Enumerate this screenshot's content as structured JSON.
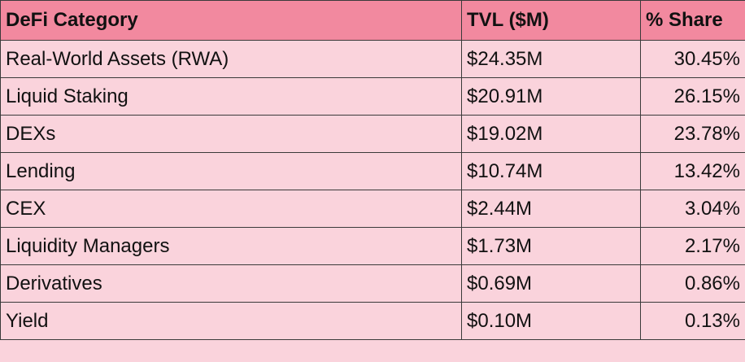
{
  "table": {
    "headers": [
      "DeFi Category",
      "TVL ($M)",
      "% Share"
    ],
    "rows": [
      [
        "Real-World Assets (RWA)",
        "$24.35M",
        "30.45%"
      ],
      [
        "Liquid Staking",
        "$20.91M",
        "26.15%"
      ],
      [
        "DEXs",
        "$19.02M",
        "23.78%"
      ],
      [
        "Lending",
        "$10.74M",
        "13.42%"
      ],
      [
        "CEX",
        "$2.44M",
        "3.04%"
      ],
      [
        "Liquidity Managers",
        "$1.73M",
        "2.17%"
      ],
      [
        "Derivatives",
        "$0.69M",
        "0.86%"
      ],
      [
        "Yield",
        "$0.10M",
        "0.13%"
      ]
    ]
  },
  "colors": {
    "header_bg": "#f2899f",
    "row_bg": "#fad3dc",
    "border": "#3a3a3a"
  }
}
